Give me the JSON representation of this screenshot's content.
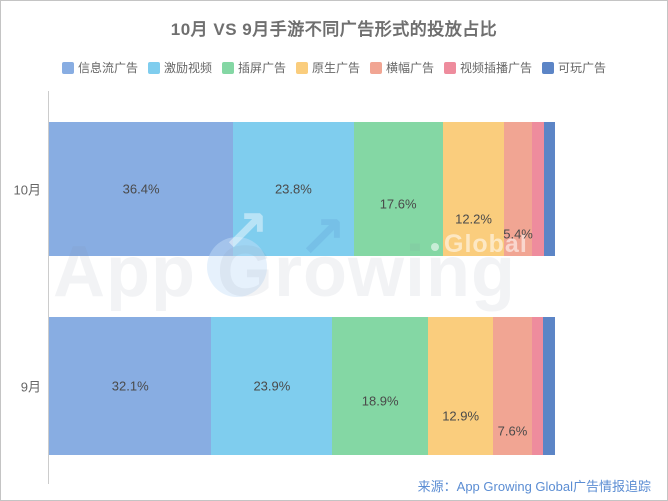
{
  "title": "10月 VS 9月手游不同广告形式的投放占比",
  "source": "来源：App Growing Global广告情报追踪",
  "watermark": {
    "text": "App Growing",
    "badge": "Global"
  },
  "chart_data": {
    "type": "bar",
    "orientation": "horizontal",
    "stacked": true,
    "unit": "%",
    "xlim": [
      0,
      100
    ],
    "legend_position": "top",
    "grid": false,
    "categories": [
      "10月",
      "9月"
    ],
    "series": [
      {
        "name": "信息流广告",
        "color": "#88ADE2",
        "values": [
          36.4,
          32.1
        ],
        "labeled": true
      },
      {
        "name": "激励视频",
        "color": "#7FCDEE",
        "values": [
          23.8,
          23.9
        ],
        "labeled": true
      },
      {
        "name": "插屏广告",
        "color": "#84D7A4",
        "values": [
          17.6,
          18.9
        ],
        "labeled": true
      },
      {
        "name": "原生广告",
        "color": "#FACD7D",
        "values": [
          12.2,
          12.9
        ],
        "labeled": true
      },
      {
        "name": "横幅广告",
        "color": "#F1A593",
        "values": [
          5.4,
          7.6
        ],
        "labeled": true
      },
      {
        "name": "视频插播广告",
        "color": "#EE8C9D",
        "values": [
          2.5,
          2.2
        ],
        "labeled": false
      },
      {
        "name": "可玩广告",
        "color": "#5C85C6",
        "values": [
          2.1,
          2.4
        ],
        "labeled": false
      }
    ],
    "unlabeled_values_estimated": true
  }
}
